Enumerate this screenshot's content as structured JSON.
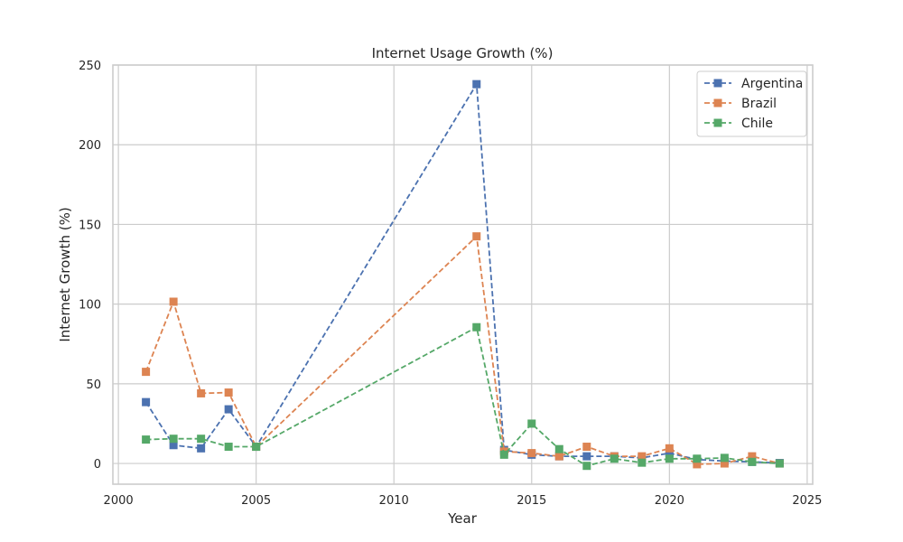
{
  "chart_data": {
    "type": "line",
    "title": "Internet Usage Growth (%)",
    "xlabel": "Year",
    "ylabel": "Internet Growth (%)",
    "xlim": [
      1999.8,
      2025.2
    ],
    "ylim": [
      -13,
      250
    ],
    "xticks": [
      2000,
      2005,
      2010,
      2015,
      2020,
      2025
    ],
    "yticks": [
      0,
      50,
      100,
      150,
      200,
      250
    ],
    "grid": true,
    "legend_position": "top-right",
    "line_style": "dashed",
    "marker": "square",
    "x": [
      2001,
      2002,
      2003,
      2004,
      2005,
      2013,
      2014,
      2015,
      2016,
      2017,
      2018,
      2019,
      2020,
      2021,
      2022,
      2023,
      2024
    ],
    "series": [
      {
        "name": "Argentina",
        "color": "#4c72b0",
        "values": [
          38.5,
          11.5,
          9.5,
          34.0,
          10.5,
          238.0,
          8.5,
          5.5,
          4.5,
          4.5,
          4.5,
          3.5,
          6.5,
          2.5,
          1.5,
          1.0,
          0.3
        ]
      },
      {
        "name": "Brazil",
        "color": "#dd8452",
        "values": [
          57.5,
          101.5,
          44.0,
          44.5,
          10.5,
          142.5,
          7.5,
          6.5,
          4.5,
          10.5,
          4.5,
          4.5,
          9.5,
          -0.5,
          0.0,
          4.5,
          0.0
        ]
      },
      {
        "name": "Chile",
        "color": "#55a868",
        "values": [
          15.0,
          15.5,
          15.5,
          10.5,
          10.5,
          85.5,
          5.5,
          25.0,
          9.0,
          -1.5,
          3.0,
          0.5,
          3.0,
          3.0,
          3.5,
          1.0,
          0.0
        ]
      }
    ]
  }
}
